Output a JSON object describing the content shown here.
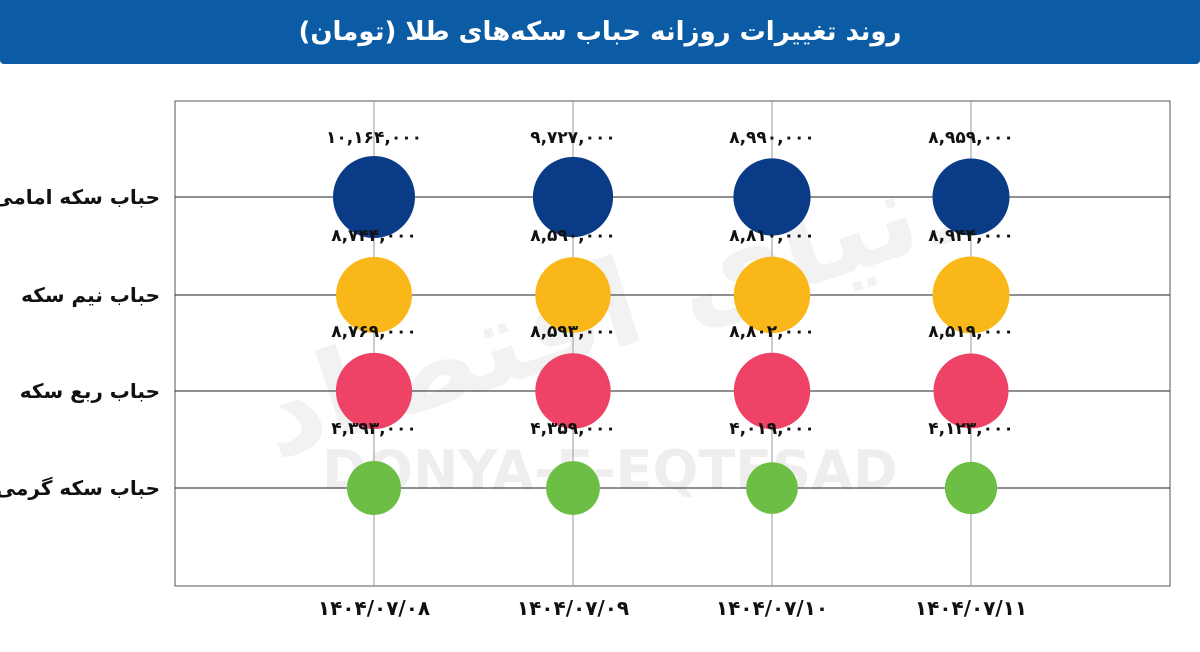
{
  "header": {
    "title": "روند تغییرات روزانه حباب سکه‌های طلا (تومان)"
  },
  "watermark": {
    "latin": "DONYA-E-EQTESAD",
    "persian": "دنیای اقتصاد"
  },
  "colors": {
    "header_bg": "#0b5ca4",
    "grid": "#222222",
    "series": [
      "#0a3b87",
      "#fab719",
      "#ee4266",
      "#6dbe45"
    ]
  },
  "chart_data": {
    "type": "scatter",
    "title": "روند تغییرات روزانه حباب سکه‌های طلا (تومان)",
    "categories": [
      "۱۴۰۴/۰۷/۰۸",
      "۱۴۰۴/۰۷/۰۹",
      "۱۴۰۴/۰۷/۱۰",
      "۱۴۰۴/۰۷/۱۱"
    ],
    "series": [
      {
        "name": "حباب سکه امامی",
        "values": [
          10164000,
          9727000,
          8990000,
          8959000
        ],
        "labels": [
          "۱۰,۱۶۴,۰۰۰",
          "۹,۷۲۷,۰۰۰",
          "۸,۹۹۰,۰۰۰",
          "۸,۹۵۹,۰۰۰"
        ],
        "color": "#0a3b87"
      },
      {
        "name": "حباب نیم سکه",
        "values": [
          8744000,
          8590000,
          8810000,
          8944000
        ],
        "labels": [
          "۸,۷۴۴,۰۰۰",
          "۸,۵۹۰,۰۰۰",
          "۸,۸۱۰,۰۰۰",
          "۸,۹۴۴,۰۰۰"
        ],
        "color": "#fab719"
      },
      {
        "name": "حباب ربع سکه",
        "values": [
          8769000,
          8593000,
          8802000,
          8519000
        ],
        "labels": [
          "۸,۷۶۹,۰۰۰",
          "۸,۵۹۳,۰۰۰",
          "۸,۸۰۲,۰۰۰",
          "۸,۵۱۹,۰۰۰"
        ],
        "color": "#ee4266"
      },
      {
        "name": "حباب سکه گرمی",
        "values": [
          4393000,
          4359000,
          4019000,
          4123000
        ],
        "labels": [
          "۴,۳۹۳,۰۰۰",
          "۴,۳۵۹,۰۰۰",
          "۴,۰۱۹,۰۰۰",
          "۴,۱۲۳,۰۰۰"
        ],
        "color": "#6dbe45"
      }
    ],
    "grid": true,
    "legend": "none"
  }
}
